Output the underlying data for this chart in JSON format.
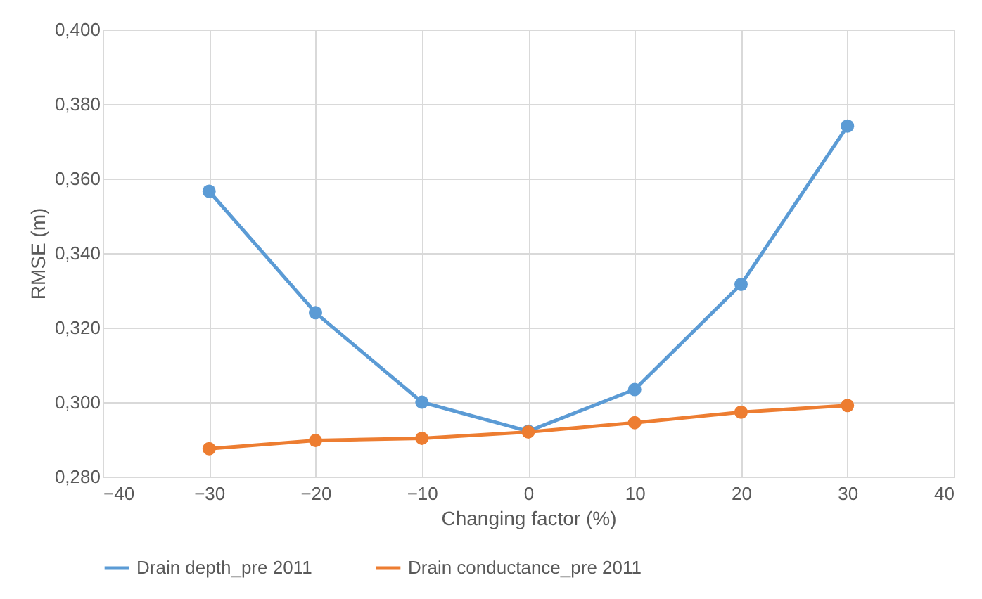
{
  "chart_data": {
    "type": "line",
    "xlabel": "Changing factor (%)",
    "ylabel": "RMSE (m)",
    "x": [
      -30,
      -20,
      -10,
      0,
      10,
      20,
      30
    ],
    "series": [
      {
        "name": "Drain depth_pre 2011",
        "color": "#5b9bd5",
        "values": [
          0.3566,
          0.324,
          0.3,
          0.2922,
          0.3034,
          0.3316,
          0.3741
        ]
      },
      {
        "name": "Drain conductance_pre 2011",
        "color": "#ed7d31",
        "values": [
          0.2875,
          0.2897,
          0.2903,
          0.292,
          0.2945,
          0.2973,
          0.2991
        ]
      }
    ],
    "xlim": [
      -40,
      40
    ],
    "xticks": [
      -40,
      -30,
      -20,
      -10,
      0,
      10,
      20,
      30,
      40
    ],
    "ylim": [
      0.28,
      0.4
    ],
    "yticks": [
      {
        "value": 0.28,
        "label": "0,280"
      },
      {
        "value": 0.3,
        "label": "0,300"
      },
      {
        "value": 0.32,
        "label": "0,320"
      },
      {
        "value": 0.34,
        "label": "0,340"
      },
      {
        "value": 0.36,
        "label": "0,360"
      },
      {
        "value": 0.38,
        "label": "0,380"
      },
      {
        "value": 0.4,
        "label": "0,400"
      }
    ],
    "grid": true,
    "legend": "bottom",
    "marker": "circle",
    "line_style": "solid"
  }
}
